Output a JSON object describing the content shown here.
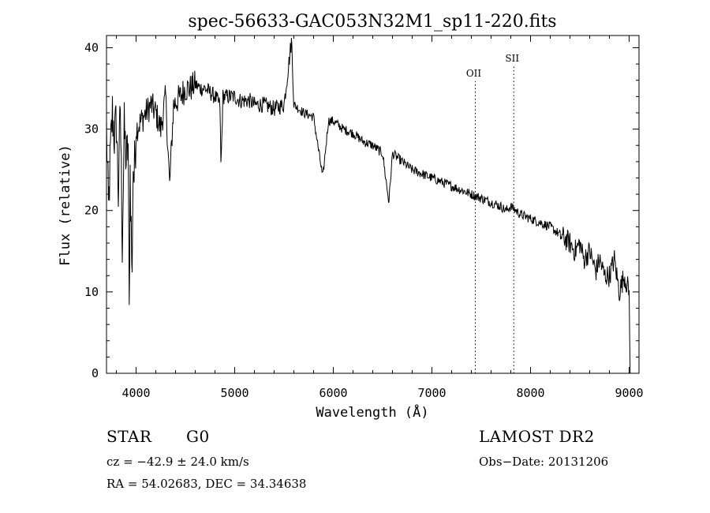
{
  "chart_data": {
    "type": "line",
    "title": "spec-56633-GAC053N32M1_sp11-220.fits",
    "xlabel": "Wavelength (Å)",
    "ylabel": "Flux (relative)",
    "xlim": [
      3700,
      9100
    ],
    "ylim": [
      0,
      41.5
    ],
    "xticks": [
      4000,
      5000,
      6000,
      7000,
      8000,
      9000
    ],
    "yticks": [
      0,
      10,
      20,
      30,
      40
    ],
    "grid": false,
    "lines": [
      {
        "label": "OII",
        "x": 7440
      },
      {
        "label": "SII",
        "x": 7830
      }
    ],
    "spectrum": {
      "x": [
        3700,
        3720,
        3740,
        3760,
        3780,
        3800,
        3820,
        3840,
        3860,
        3880,
        3900,
        3920,
        3930,
        3940,
        3960,
        3968,
        3980,
        4000,
        4050,
        4100,
        4150,
        4200,
        4250,
        4300,
        4340,
        4380,
        4450,
        4500,
        4550,
        4600,
        4650,
        4700,
        4750,
        4800,
        4850,
        4861,
        4880,
        4950,
        5000,
        5050,
        5100,
        5150,
        5200,
        5300,
        5400,
        5500,
        5577,
        5600,
        5650,
        5700,
        5800,
        5893,
        5950,
        6000,
        6100,
        6200,
        6300,
        6400,
        6500,
        6563,
        6600,
        6700,
        6800,
        6900,
        7000,
        7100,
        7200,
        7300,
        7400,
        7500,
        7600,
        7700,
        7750,
        7800,
        7900,
        8000,
        8100,
        8200,
        8300,
        8400,
        8450,
        8500,
        8540,
        8600,
        8662,
        8700,
        8750,
        8800,
        8850,
        8900,
        8950,
        9000,
        9010
      ],
      "y": [
        30,
        20,
        27,
        32,
        29,
        31,
        22,
        33,
        16,
        30,
        26,
        28,
        7,
        25,
        11,
        26,
        24,
        30,
        31,
        32,
        33,
        32,
        30,
        34,
        23,
        33,
        34,
        35,
        35,
        35.5,
        35,
        35,
        34.5,
        34,
        33,
        25,
        34,
        34,
        34,
        33.5,
        33.5,
        33.5,
        33,
        33,
        32.5,
        33,
        41,
        33,
        32.5,
        32,
        31.5,
        24,
        31,
        31,
        30,
        29.5,
        28.5,
        28,
        27,
        21,
        27,
        26,
        25,
        24.5,
        24,
        23.5,
        23,
        22.5,
        22,
        21.5,
        21,
        20.5,
        20,
        20.5,
        19.5,
        19,
        18.5,
        18,
        17,
        16,
        15,
        16,
        14,
        15,
        12.5,
        14,
        12,
        12,
        14,
        10,
        12,
        10,
        0
      ]
    }
  },
  "footer": {
    "object_class": "STAR",
    "subclass": "G0",
    "survey": "LAMOST DR2",
    "cz": "cz = −42.9 ± 24.0 km/s",
    "obs_date": "Obs−Date: 20131206",
    "coords": "RA =  54.02683, DEC =  34.34638"
  }
}
